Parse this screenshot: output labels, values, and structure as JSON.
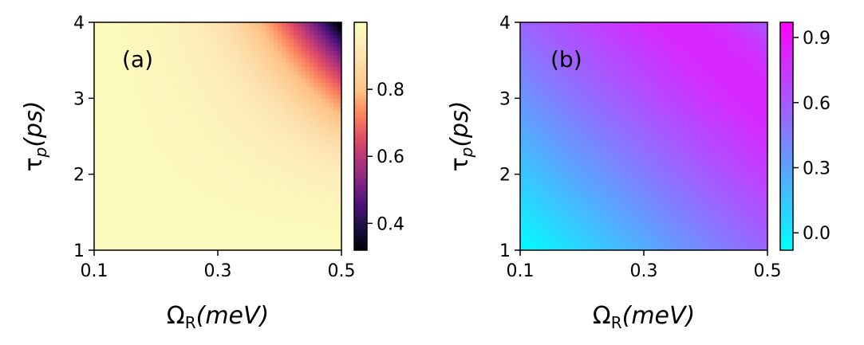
{
  "chart_data": [
    {
      "type": "heatmap",
      "panel_label": "(a)",
      "xlabel": {
        "main": "Ω",
        "sub": "R",
        "rest": "(meV)"
      },
      "ylabel": {
        "main": "τ",
        "sub": "p",
        "rest": "(ps)"
      },
      "xlim": [
        0.1,
        0.5
      ],
      "ylim": [
        1,
        4
      ],
      "xticks": [
        "0.1",
        "0.3",
        "0.5"
      ],
      "xtick_values": [
        0.1,
        0.3,
        0.5
      ],
      "yticks": [
        "1",
        "2",
        "3",
        "4"
      ],
      "ytick_values": [
        1,
        2,
        3,
        4
      ],
      "colorscale": "magma",
      "colorbar_range": [
        0.32,
        1.0
      ],
      "colorbar_ticks": [
        "0.4",
        "0.6",
        "0.8"
      ],
      "colorbar_tick_values": [
        0.4,
        0.6,
        0.8
      ],
      "colors": {
        "low": "#000004",
        "mid": "#b73779",
        "high": "#fcfdbf"
      }
    },
    {
      "type": "heatmap",
      "panel_label": "(b)",
      "xlabel": {
        "main": "Ω",
        "sub": "R",
        "rest": "(meV)"
      },
      "ylabel": {
        "main": "τ",
        "sub": "p",
        "rest": "(ps)"
      },
      "xlim": [
        0.1,
        0.5
      ],
      "ylim": [
        1,
        4
      ],
      "xticks": [
        "0.1",
        "0.3",
        "0.5"
      ],
      "xtick_values": [
        0.1,
        0.3,
        0.5
      ],
      "yticks": [
        "1",
        "2",
        "3",
        "4"
      ],
      "ytick_values": [
        1,
        2,
        3,
        4
      ],
      "colorscale": "cool",
      "colorbar_range": [
        -0.08,
        0.97
      ],
      "colorbar_ticks": [
        "0.0",
        "0.3",
        "0.6",
        "0.9"
      ],
      "colorbar_tick_values": [
        0.0,
        0.3,
        0.6,
        0.9
      ],
      "colors": {
        "low": "#00ffff",
        "high": "#ff00ff"
      }
    }
  ]
}
